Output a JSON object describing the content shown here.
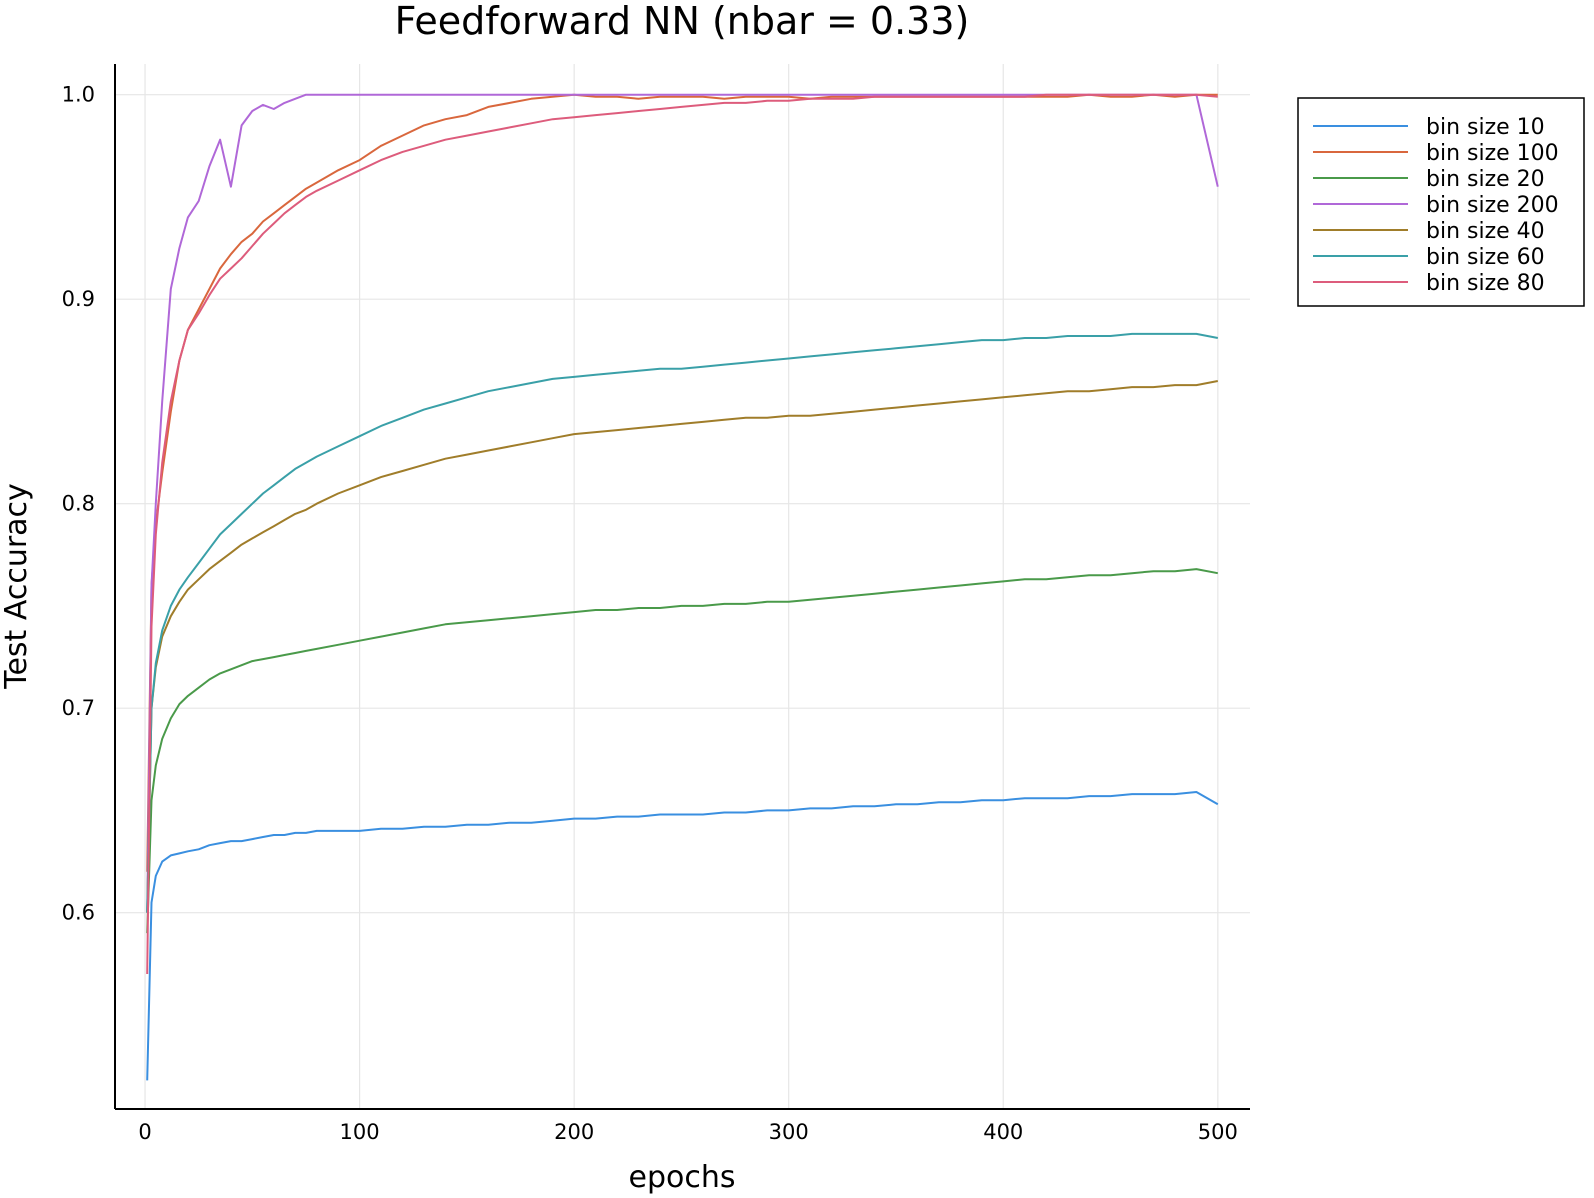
{
  "chart_data": {
    "type": "line",
    "title": "Feedforward NN (nbar = 0.33)",
    "xlabel": "epochs",
    "ylabel": "Test Accuracy",
    "xlim": [
      -14,
      515
    ],
    "ylim": [
      0.504,
      1.015
    ],
    "xticks": [
      0,
      100,
      200,
      300,
      400,
      500
    ],
    "xtick_labels": [
      "0",
      "100",
      "200",
      "300",
      "400",
      "500"
    ],
    "yticks": [
      0.6,
      0.7,
      0.8,
      0.9,
      1.0
    ],
    "ytick_labels": [
      "0.6",
      "0.7",
      "0.8",
      "0.9",
      "1.0"
    ],
    "grid": true,
    "legend_position": "top-right (outside plot)",
    "x": [
      1,
      3,
      5,
      8,
      12,
      16,
      20,
      25,
      30,
      35,
      40,
      45,
      50,
      55,
      60,
      65,
      70,
      75,
      80,
      90,
      100,
      110,
      120,
      130,
      140,
      150,
      160,
      170,
      180,
      190,
      200,
      210,
      220,
      230,
      240,
      250,
      260,
      270,
      280,
      290,
      300,
      310,
      320,
      330,
      340,
      350,
      360,
      370,
      380,
      390,
      400,
      410,
      420,
      430,
      440,
      450,
      460,
      470,
      480,
      490,
      500
    ],
    "series": [
      {
        "name": "bin size 10",
        "color": "#3a8fe0",
        "values": [
          0.518,
          0.605,
          0.618,
          0.625,
          0.628,
          0.629,
          0.63,
          0.631,
          0.633,
          0.634,
          0.635,
          0.635,
          0.636,
          0.637,
          0.638,
          0.638,
          0.639,
          0.639,
          0.64,
          0.64,
          0.64,
          0.641,
          0.641,
          0.642,
          0.642,
          0.643,
          0.643,
          0.644,
          0.644,
          0.645,
          0.646,
          0.646,
          0.647,
          0.647,
          0.648,
          0.648,
          0.648,
          0.649,
          0.649,
          0.65,
          0.65,
          0.651,
          0.651,
          0.652,
          0.652,
          0.653,
          0.653,
          0.654,
          0.654,
          0.655,
          0.655,
          0.656,
          0.656,
          0.656,
          0.657,
          0.657,
          0.658,
          0.658,
          0.658,
          0.659,
          0.653
        ]
      },
      {
        "name": "bin size 100",
        "color": "#d9673d",
        "values": [
          0.62,
          0.76,
          0.79,
          0.815,
          0.845,
          0.87,
          0.885,
          0.895,
          0.905,
          0.915,
          0.922,
          0.928,
          0.932,
          0.938,
          0.942,
          0.946,
          0.95,
          0.954,
          0.957,
          0.963,
          0.968,
          0.975,
          0.98,
          0.985,
          0.988,
          0.99,
          0.994,
          0.996,
          0.998,
          0.999,
          1.0,
          0.999,
          0.999,
          0.998,
          0.999,
          0.999,
          0.999,
          0.998,
          0.999,
          0.999,
          0.999,
          0.998,
          0.999,
          0.999,
          0.999,
          0.999,
          0.999,
          0.999,
          0.999,
          0.999,
          0.999,
          0.999,
          0.999,
          0.999,
          1.0,
          0.999,
          0.999,
          1.0,
          0.999,
          1.0,
          1.0
        ]
      },
      {
        "name": "bin size 20",
        "color": "#4a9a4a",
        "values": [
          0.59,
          0.655,
          0.672,
          0.685,
          0.695,
          0.702,
          0.706,
          0.71,
          0.714,
          0.717,
          0.719,
          0.721,
          0.723,
          0.724,
          0.725,
          0.726,
          0.727,
          0.728,
          0.729,
          0.731,
          0.733,
          0.735,
          0.737,
          0.739,
          0.741,
          0.742,
          0.743,
          0.744,
          0.745,
          0.746,
          0.747,
          0.748,
          0.748,
          0.749,
          0.749,
          0.75,
          0.75,
          0.751,
          0.751,
          0.752,
          0.752,
          0.753,
          0.754,
          0.755,
          0.756,
          0.757,
          0.758,
          0.759,
          0.76,
          0.761,
          0.762,
          0.763,
          0.763,
          0.764,
          0.765,
          0.765,
          0.766,
          0.767,
          0.767,
          0.768,
          0.766
        ]
      },
      {
        "name": "bin size 200",
        "color": "#b068d8",
        "values": [
          0.6,
          0.76,
          0.8,
          0.85,
          0.905,
          0.925,
          0.94,
          0.948,
          0.965,
          0.978,
          0.955,
          0.985,
          0.992,
          0.995,
          0.993,
          0.996,
          0.998,
          1.0,
          1.0,
          1.0,
          1.0,
          1.0,
          1.0,
          1.0,
          1.0,
          1.0,
          1.0,
          1.0,
          1.0,
          1.0,
          1.0,
          1.0,
          1.0,
          1.0,
          1.0,
          1.0,
          1.0,
          1.0,
          1.0,
          1.0,
          1.0,
          1.0,
          1.0,
          1.0,
          1.0,
          1.0,
          1.0,
          1.0,
          1.0,
          1.0,
          1.0,
          1.0,
          1.0,
          1.0,
          1.0,
          1.0,
          1.0,
          1.0,
          1.0,
          1.0,
          0.955
        ]
      },
      {
        "name": "bin size 40",
        "color": "#a07d2a",
        "values": [
          0.6,
          0.7,
          0.72,
          0.735,
          0.745,
          0.752,
          0.758,
          0.763,
          0.768,
          0.772,
          0.776,
          0.78,
          0.783,
          0.786,
          0.789,
          0.792,
          0.795,
          0.797,
          0.8,
          0.805,
          0.809,
          0.813,
          0.816,
          0.819,
          0.822,
          0.824,
          0.826,
          0.828,
          0.83,
          0.832,
          0.834,
          0.835,
          0.836,
          0.837,
          0.838,
          0.839,
          0.84,
          0.841,
          0.842,
          0.842,
          0.843,
          0.843,
          0.844,
          0.845,
          0.846,
          0.847,
          0.848,
          0.849,
          0.85,
          0.851,
          0.852,
          0.853,
          0.854,
          0.855,
          0.855,
          0.856,
          0.857,
          0.857,
          0.858,
          0.858,
          0.86
        ]
      },
      {
        "name": "bin size 60",
        "color": "#3aa0a8",
        "values": [
          0.6,
          0.7,
          0.722,
          0.738,
          0.75,
          0.758,
          0.764,
          0.771,
          0.778,
          0.785,
          0.79,
          0.795,
          0.8,
          0.805,
          0.809,
          0.813,
          0.817,
          0.82,
          0.823,
          0.828,
          0.833,
          0.838,
          0.842,
          0.846,
          0.849,
          0.852,
          0.855,
          0.857,
          0.859,
          0.861,
          0.862,
          0.863,
          0.864,
          0.865,
          0.866,
          0.866,
          0.867,
          0.868,
          0.869,
          0.87,
          0.871,
          0.872,
          0.873,
          0.874,
          0.875,
          0.876,
          0.877,
          0.878,
          0.879,
          0.88,
          0.88,
          0.881,
          0.881,
          0.882,
          0.882,
          0.882,
          0.883,
          0.883,
          0.883,
          0.883,
          0.881
        ]
      },
      {
        "name": "bin size 80",
        "color": "#dd5c7c",
        "values": [
          0.57,
          0.74,
          0.785,
          0.82,
          0.85,
          0.87,
          0.885,
          0.893,
          0.902,
          0.91,
          0.915,
          0.92,
          0.926,
          0.932,
          0.937,
          0.942,
          0.946,
          0.95,
          0.953,
          0.958,
          0.963,
          0.968,
          0.972,
          0.975,
          0.978,
          0.98,
          0.982,
          0.984,
          0.986,
          0.988,
          0.989,
          0.99,
          0.991,
          0.992,
          0.993,
          0.994,
          0.995,
          0.996,
          0.996,
          0.997,
          0.997,
          0.998,
          0.998,
          0.998,
          0.999,
          0.999,
          0.999,
          0.999,
          0.999,
          0.999,
          0.999,
          0.999,
          1.0,
          1.0,
          1.0,
          1.0,
          1.0,
          1.0,
          1.0,
          1.0,
          0.999
        ]
      }
    ]
  }
}
